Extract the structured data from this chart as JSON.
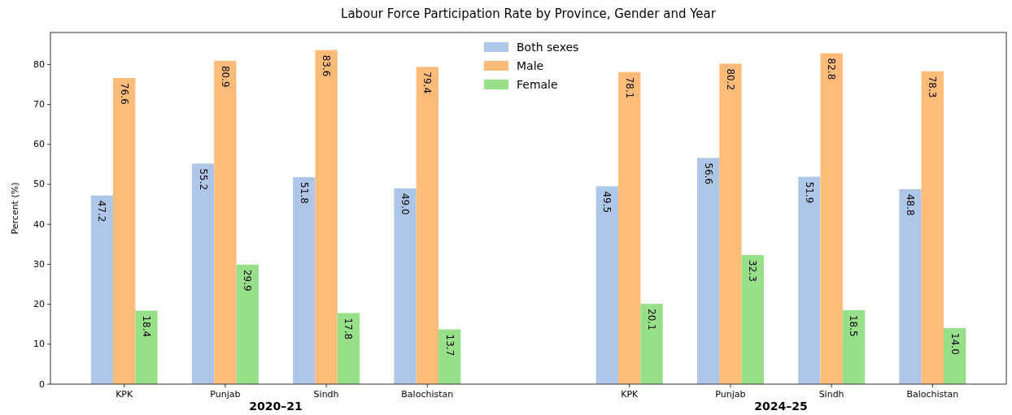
{
  "chart_data": {
    "type": "bar",
    "title": "Labour Force Participation Rate by Province, Gender and Year",
    "ylabel": "Percent (%)",
    "categories": [
      "KPK",
      "Punjab",
      "Sindh",
      "Balochistan",
      null,
      "KPK",
      "Punjab",
      "Sindh",
      "Balochistan"
    ],
    "series": [
      {
        "name": "Both sexes",
        "color": "#aec7e8",
        "values": [
          47.2,
          55.2,
          51.8,
          49.0,
          null,
          49.5,
          56.6,
          51.9,
          48.8
        ],
        "value_labels": [
          "47.2",
          "55.2",
          "51.8",
          "49.0",
          null,
          "49.5",
          "56.6",
          "51.9",
          "48.8"
        ]
      },
      {
        "name": "Male",
        "color": "#ffbb78",
        "values": [
          76.6,
          80.9,
          83.6,
          79.4,
          null,
          78.1,
          80.2,
          82.8,
          78.3
        ],
        "value_labels": [
          "76.6",
          "80.9",
          "83.6",
          "79.4",
          null,
          "78.1",
          "80.2",
          "82.8",
          "78.3"
        ]
      },
      {
        "name": "Female",
        "color": "#98df8a",
        "values": [
          18.4,
          29.9,
          17.8,
          13.7,
          null,
          20.1,
          32.3,
          18.5,
          14.0
        ],
        "value_labels": [
          "18.4",
          "29.9",
          "17.8",
          "13.7",
          null,
          "20.1",
          "32.3",
          "18.5",
          "14.0"
        ]
      }
    ],
    "ylim": [
      0,
      88
    ],
    "yticks": [
      0,
      10,
      20,
      30,
      40,
      50,
      60,
      70,
      80
    ],
    "grid": false,
    "legend": "top",
    "annotations": [
      "2020–21",
      "2024–25"
    ]
  }
}
